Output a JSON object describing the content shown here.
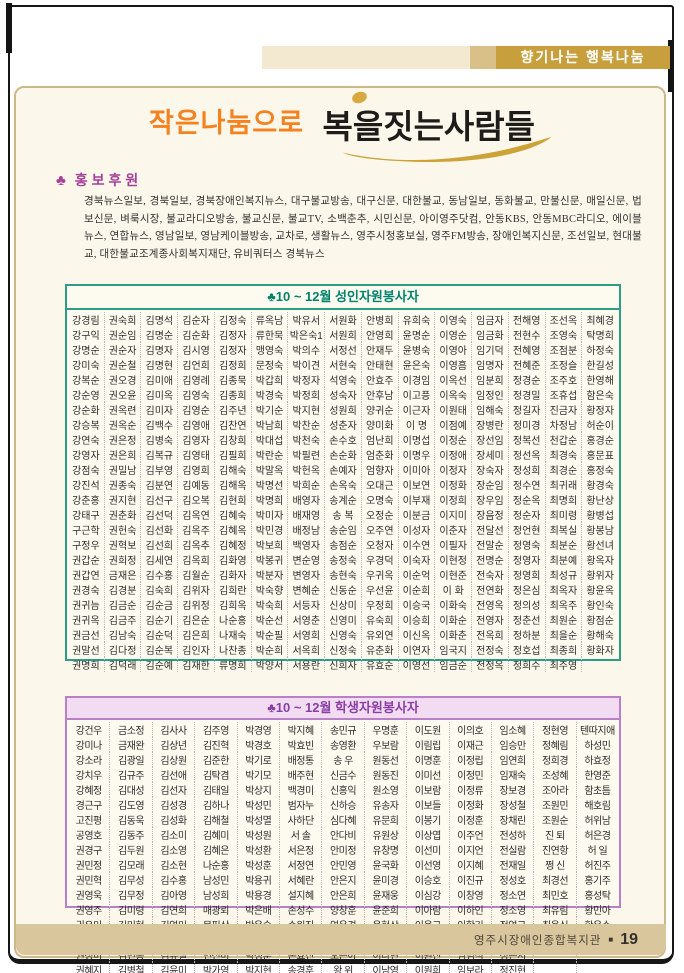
{
  "banner": {
    "label": "향기나는 행복나눔"
  },
  "title": {
    "part1": "작은나눔으로",
    "part2": "복을짓는사람들"
  },
  "promo": {
    "club": "♣",
    "heading": "홍보후원",
    "body": "경북뉴스일보, 경북일보, 경북장애인복지뉴스, 대구불교방송, 대구신문, 대한불교, 동남일보, 동화불교, 만불신문, 매일신문, 법보신문, 벼룩시장, 불교라디오방송, 불교신문, 불교TV, 소백춘추, 시민신문, 아이영주닷컴, 안동KBS, 안동MBC라디오, 에이블뉴스, 연합뉴스, 영남일보, 영남케이블방송, 교차로, 생활뉴스, 영주시청홍보실, 영주FM방송, 장애인복지신문, 조선일보, 현대불교, 대한불교조계종사회복지재단, 유비쿼터스 경북뉴스"
  },
  "adult_table": {
    "title": "♣10 ~ 12월 성인자원봉사자",
    "rows": [
      [
        "강경림",
        "권숙희",
        "김명석",
        "김순자",
        "김정숙",
        "류옥남",
        "박유서",
        "서원화",
        "안병희",
        "유희숙",
        "이영숙",
        "임금자",
        "전해영",
        "조선옥",
        "최혜경"
      ],
      [
        "강구익",
        "권순임",
        "김명순",
        "김순화",
        "김정자",
        "류한묵",
        "박은숙1",
        "서원희",
        "안영희",
        "윤명순",
        "이영순",
        "임금화",
        "전현수",
        "조영숙",
        "탁명희"
      ],
      [
        "강명순",
        "권순자",
        "김명자",
        "김시영",
        "김정자",
        "맹영숙",
        "박의수",
        "서정선",
        "안재두",
        "윤병숙",
        "이영아",
        "임기덕",
        "전혜영",
        "조점분",
        "하정숙"
      ],
      [
        "강미숙",
        "권순철",
        "김명현",
        "김언희",
        "김정희",
        "문정숙",
        "박이견",
        "서현숙",
        "안태현",
        "윤은숙",
        "이영흠",
        "임명자",
        "전혜준",
        "조정슬",
        "한길성"
      ],
      [
        "강복순",
        "권오경",
        "김미애",
        "김영례",
        "김종묵",
        "박갑희",
        "박정자",
        "석영숙",
        "안효주",
        "이경임",
        "이옥선",
        "임분희",
        "정경순",
        "조주호",
        "한영해"
      ],
      [
        "강순영",
        "권오윤",
        "김미옥",
        "김영숙",
        "김종희",
        "박경숙",
        "박정희",
        "성숙자",
        "안후남",
        "이고픙",
        "이옥숙",
        "임정인",
        "정경밀",
        "조휴섭",
        "함은숙"
      ],
      [
        "강순화",
        "권옥련",
        "김미자",
        "김영순",
        "김주년",
        "박기순",
        "박지현",
        "성원희",
        "양귀순",
        "이근자",
        "이원태",
        "임해숙",
        "정길자",
        "진금자",
        "황정자"
      ],
      [
        "강승복",
        "권옥순",
        "김백수",
        "김영애",
        "김찬연",
        "박남희",
        "박찬순",
        "성춘자",
        "양미화",
        "이 명",
        "이점예",
        "장병란",
        "정미경",
        "차정남",
        "허순이"
      ],
      [
        "강연숙",
        "권은정",
        "김병숙",
        "김영자",
        "김창희",
        "박대섭",
        "박천숙",
        "손수호",
        "엄난희",
        "이명섭",
        "이정순",
        "장선임",
        "정복선",
        "천갑순",
        "홍경순"
      ],
      [
        "강영자",
        "권은희",
        "김복규",
        "김영태",
        "김필희",
        "박란순",
        "박필련",
        "손순화",
        "엄춘화",
        "이명우",
        "이정애",
        "장세미",
        "정선옥",
        "최경숙",
        "홍문표"
      ],
      [
        "강점숙",
        "권밀남",
        "김부영",
        "김영희",
        "김해숙",
        "박말옥",
        "박헌옥",
        "손예자",
        "엄향자",
        "이미아",
        "이정자",
        "장숙자",
        "정성희",
        "최경순",
        "홍정숙"
      ],
      [
        "강진석",
        "권종숙",
        "김분연",
        "김예동",
        "김해옥",
        "박명선",
        "박희순",
        "손옥숙",
        "오대근",
        "이보연",
        "이정화",
        "장순임",
        "정수연",
        "최귀래",
        "황경숙"
      ],
      [
        "강춘홍",
        "권지현",
        "김선구",
        "김오복",
        "김현희",
        "박명희",
        "배영자",
        "송계순",
        "오명숙",
        "이부재",
        "이정희",
        "장우임",
        "정순옥",
        "최명희",
        "황난상"
      ],
      [
        "강태구",
        "권춘화",
        "김선덕",
        "김옥연",
        "김혜숙",
        "박미자",
        "배재영",
        "송 복",
        "오정순",
        "이분금",
        "이지미",
        "장음정",
        "정순자",
        "최미령",
        "황병섭"
      ],
      [
        "구근학",
        "권헌숙",
        "김선화",
        "김옥주",
        "김혜옥",
        "박민경",
        "배정남",
        "송순임",
        "오주연",
        "이성자",
        "이춘자",
        "전달선",
        "정언현",
        "최복실",
        "황봉남"
      ],
      [
        "구정우",
        "권혁보",
        "김선희",
        "김옥추",
        "김혜정",
        "박보희",
        "백영자",
        "송점순",
        "오청자",
        "이수연",
        "이필자",
        "전말순",
        "정영숙",
        "최분순",
        "황선녀"
      ],
      [
        "권갑순",
        "권희정",
        "김세연",
        "김옥희",
        "김화영",
        "박봉귀",
        "변순영",
        "송정숙",
        "우경덕",
        "이숙자",
        "이현정",
        "전명순",
        "정영자",
        "최분예",
        "황옥자"
      ],
      [
        "권갑연",
        "금재은",
        "김수홍",
        "김월순",
        "김화자",
        "박분자",
        "변영자",
        "송현숙",
        "우귀옥",
        "이순억",
        "이현준",
        "전숙자",
        "정영희",
        "최성규",
        "황위자"
      ],
      [
        "권경숙",
        "김경분",
        "김숙희",
        "김위자",
        "김희란",
        "박숙향",
        "변혜순",
        "신동순",
        "우선윤",
        "이순희",
        "이 화",
        "전연화",
        "정은심",
        "최옥자",
        "황윤옥"
      ],
      [
        "권귀늠",
        "김금순",
        "김순금",
        "김위정",
        "김희옥",
        "박숙희",
        "서등자",
        "신상미",
        "우정희",
        "이승국",
        "이화숙",
        "전영옥",
        "정의성",
        "최옥주",
        "황인숙"
      ],
      [
        "권귀옥",
        "김금주",
        "김순기",
        "김은순",
        "나순홍",
        "박순선",
        "서영춘",
        "신영미",
        "유숙희",
        "이승희",
        "이화순",
        "전영자",
        "정춘선",
        "최원순",
        "황점순"
      ],
      [
        "권금선",
        "김남숙",
        "김순덕",
        "김은희",
        "나재숙",
        "박순필",
        "서영희",
        "신영숙",
        "유외연",
        "이신옥",
        "이화춘",
        "전옥희",
        "정하분",
        "최을순",
        "황해숙"
      ],
      [
        "권말선",
        "김다정",
        "김순복",
        "김인자",
        "나찬종",
        "박순희",
        "서옥희",
        "신정숙",
        "유춘화",
        "이연자",
        "임국지",
        "전정숙",
        "정호섭",
        "최종희",
        "황화자"
      ],
      [
        "권명희",
        "김덕래",
        "김순예",
        "김재한",
        "류명희",
        "박양서",
        "서용란",
        "신희자",
        "유효순",
        "이영선",
        "임금순",
        "전정옥",
        "정희수",
        "최주영",
        ""
      ]
    ]
  },
  "student_table": {
    "title": "♣10 ~ 12월 학생자원봉사자",
    "rows": [
      [
        "강건우",
        "금소정",
        "김사사",
        "김주영",
        "박경영",
        "박지혜",
        "송민규",
        "우명훈",
        "이도원",
        "이의호",
        "임소혜",
        "정현영",
        "텐따지애"
      ],
      [
        "강미나",
        "금재완",
        "김상년",
        "김진혁",
        "박경호",
        "박효빈",
        "송영환",
        "우보람",
        "이림립",
        "이재근",
        "임승만",
        "정혜림",
        "하성민"
      ],
      [
        "강소라",
        "김광일",
        "김상원",
        "김준한",
        "박기로",
        "배정통",
        "송 우",
        "원동선",
        "이명훈",
        "이정립",
        "임연희",
        "정희경",
        "하효정"
      ],
      [
        "강치우",
        "김규주",
        "김선애",
        "김탁겸",
        "박기모",
        "배주현",
        "신금수",
        "원동진",
        "이미선",
        "이정민",
        "임재숙",
        "조성혜",
        "한영준"
      ],
      [
        "강혜정",
        "김대성",
        "김선자",
        "김태일",
        "박상지",
        "백경미",
        "신홍익",
        "원소영",
        "이보람",
        "이정류",
        "장보경",
        "조아라",
        "함초틈"
      ],
      [
        "경근구",
        "김도영",
        "김성경",
        "김하나",
        "박성민",
        "범자누",
        "신하승",
        "유송자",
        "이보들",
        "이정화",
        "장성철",
        "조원민",
        "해호림"
      ],
      [
        "고진평",
        "김동욱",
        "김성화",
        "김해철",
        "박성멸",
        "사하단",
        "심다혜",
        "유문희",
        "이봉기",
        "이정훈",
        "장채린",
        "조원순",
        "허위남"
      ],
      [
        "공영호",
        "김동주",
        "김소미",
        "김혜미",
        "박성원",
        "서 솔",
        "안다비",
        "유원상",
        "이상엽",
        "이주언",
        "전성하",
        "진 퇴",
        "허은경"
      ],
      [
        "권경구",
        "김두원",
        "김소영",
        "김혜은",
        "박성환",
        "서은정",
        "안미정",
        "유창명",
        "이선미",
        "이지언",
        "전실람",
        "진연항",
        "허 일"
      ],
      [
        "권민정",
        "김모래",
        "김소현",
        "나순홍",
        "박성훈",
        "서정연",
        "안민영",
        "윤국화",
        "이선영",
        "이지혜",
        "전재일",
        "쩡 신",
        "허진주"
      ],
      [
        "권민혁",
        "김무성",
        "김수홍",
        "남성민",
        "박용귀",
        "서혜란",
        "안은지",
        "윤미경",
        "이승호",
        "이진규",
        "정성호",
        "최경선",
        "홍기주"
      ],
      [
        "권영욱",
        "김무정",
        "김아영",
        "남성희",
        "박용경",
        "설지혜",
        "안은희",
        "윤재웅",
        "이심강",
        "이창영",
        "정소연",
        "최민호",
        "홍성탁"
      ],
      [
        "권영주",
        "김미령",
        "김연희",
        "매광뢰",
        "박은배",
        "손성수",
        "양창훈",
        "윤준희",
        "이아람",
        "이하인",
        "정소영",
        "최유림",
        "황민아"
      ],
      [
        "권유미",
        "김미현",
        "김영미",
        "문필상",
        "박은슬",
        "손원진",
        "연은경",
        "윤현상",
        "이용규",
        "이항기",
        "정영규",
        "최웅식",
        "황은수"
      ],
      [
        "권은숙",
        "김미홍",
        "김용찬",
        "민경홍",
        "박은지",
        "손정훈",
        "오서우",
        "이기우",
        "이용수",
        "이희진",
        "정영훈",
        "태인순",
        ""
      ],
      [
        "권정미",
        "김민홍",
        "김유철",
        "민선미",
        "박정훈",
        "손효진",
        "오은아",
        "이나현",
        "이원진",
        "임범석",
        "정은지",
        "",
        ""
      ],
      [
        "권혜지",
        "김병철",
        "김윤미",
        "박가영",
        "박지현",
        "송경훈",
        "왕 위",
        "이남영",
        "이원희",
        "임보라",
        "정진현",
        "",
        ""
      ]
    ]
  },
  "footer": {
    "org": "영주시장애인종합복지관",
    "bullet": "■",
    "page": "19"
  },
  "colors": {
    "banner_gold": "#C7A03D",
    "title_orange": "#F5821F",
    "swoosh_gold": "#CDA236",
    "promo_purple": "#A6409B",
    "adult_border_green": "#2E9D87",
    "adult_title_green": "#00826B",
    "student_border_purple": "#BA7FC9",
    "student_title_purple": "#8A3FA5",
    "student_header_bg": "#F2DCF2",
    "footer_band": "#D9C69C"
  }
}
